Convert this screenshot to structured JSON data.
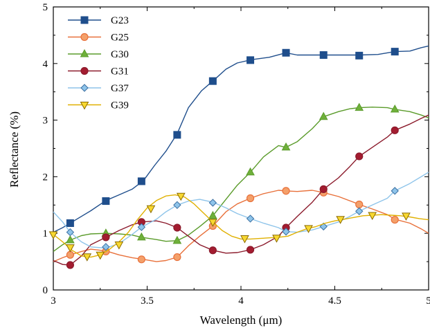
{
  "chart_data": {
    "type": "line",
    "xlabel": "Wavelength (μm)",
    "ylabel": "Reflectance (%)",
    "xlim": [
      3,
      5
    ],
    "ylim": [
      0,
      5
    ],
    "x_ticks": [
      "3",
      "3.5",
      "4",
      "4.5",
      "5"
    ],
    "y_ticks": [
      "0",
      "1",
      "2",
      "3",
      "4",
      "5"
    ],
    "grid": false,
    "legend_position": "top-left",
    "series": [
      {
        "name": "G23",
        "color": "#1f4e8c",
        "marker": "square",
        "marker_fill": "#1f4e8c",
        "x": [
          3.0,
          3.05,
          3.1,
          3.2,
          3.28,
          3.35,
          3.42,
          3.48,
          3.54,
          3.6,
          3.66,
          3.72,
          3.79,
          3.86,
          3.92,
          3.98,
          4.06,
          4.15,
          4.24,
          4.3,
          4.44,
          4.55,
          4.63,
          4.73,
          4.82,
          4.9,
          4.96,
          5.0
        ],
        "y": [
          1.02,
          1.1,
          1.2,
          1.4,
          1.58,
          1.68,
          1.78,
          1.93,
          2.2,
          2.45,
          2.76,
          3.22,
          3.52,
          3.72,
          3.9,
          4.01,
          4.07,
          4.11,
          4.19,
          4.15,
          4.15,
          4.15,
          4.15,
          4.16,
          4.21,
          4.22,
          4.28,
          4.31
        ],
        "markers_x": [
          3.09,
          3.28,
          3.47,
          3.66,
          3.85,
          4.05,
          4.24,
          4.44,
          4.63,
          4.82
        ],
        "markers_y": [
          1.18,
          1.57,
          1.92,
          2.74,
          3.69,
          4.06,
          4.19,
          4.15,
          4.14,
          4.21
        ]
      },
      {
        "name": "G25",
        "color": "#e8703a",
        "marker": "circle",
        "marker_fill": "#f4a06a",
        "x": [
          3.0,
          3.05,
          3.09,
          3.15,
          3.2,
          3.28,
          3.35,
          3.42,
          3.48,
          3.55,
          3.6,
          3.66,
          3.72,
          3.78,
          3.85,
          3.92,
          3.98,
          4.05,
          4.12,
          4.2,
          4.24,
          4.3,
          4.38,
          4.44,
          4.52,
          4.6,
          4.63,
          4.7,
          4.78,
          4.82,
          4.9,
          4.96,
          5.0
        ],
        "y": [
          0.5,
          0.57,
          0.62,
          0.68,
          0.72,
          0.69,
          0.62,
          0.57,
          0.54,
          0.5,
          0.52,
          0.58,
          0.78,
          0.95,
          1.13,
          1.38,
          1.52,
          1.62,
          1.7,
          1.76,
          1.75,
          1.74,
          1.76,
          1.72,
          1.65,
          1.55,
          1.51,
          1.43,
          1.33,
          1.25,
          1.18,
          1.08,
          1.0
        ],
        "markers_x": [
          3.09,
          3.28,
          3.47,
          3.66,
          3.85,
          4.05,
          4.24,
          4.44,
          4.63,
          4.82
        ],
        "markers_y": [
          0.62,
          0.68,
          0.54,
          0.58,
          1.13,
          1.62,
          1.75,
          1.72,
          1.51,
          1.24
        ]
      },
      {
        "name": "G30",
        "color": "#5a9b2a",
        "marker": "triangle-up",
        "marker_fill": "#6fb03a",
        "x": [
          3.0,
          3.05,
          3.09,
          3.15,
          3.2,
          3.28,
          3.35,
          3.42,
          3.47,
          3.55,
          3.6,
          3.66,
          3.72,
          3.78,
          3.85,
          3.92,
          3.98,
          4.05,
          4.12,
          4.2,
          4.24,
          4.3,
          4.38,
          4.44,
          4.52,
          4.58,
          4.63,
          4.7,
          4.78,
          4.82,
          4.9,
          4.96,
          5.0
        ],
        "y": [
          0.68,
          0.8,
          0.88,
          0.96,
          0.99,
          1.0,
          0.99,
          0.97,
          0.93,
          0.89,
          0.86,
          0.87,
          0.97,
          1.12,
          1.31,
          1.6,
          1.85,
          2.08,
          2.35,
          2.55,
          2.52,
          2.62,
          2.85,
          3.06,
          3.15,
          3.2,
          3.22,
          3.23,
          3.22,
          3.19,
          3.15,
          3.09,
          3.04
        ],
        "markers_x": [
          3.09,
          3.28,
          3.47,
          3.66,
          3.85,
          4.05,
          4.24,
          4.44,
          4.63,
          4.82
        ],
        "markers_y": [
          0.88,
          1.0,
          0.93,
          0.87,
          1.31,
          2.08,
          2.52,
          3.06,
          3.22,
          3.19
        ]
      },
      {
        "name": "G31",
        "color": "#8b1a2b",
        "marker": "circle",
        "marker_fill": "#a31c30",
        "x": [
          3.0,
          3.05,
          3.09,
          3.15,
          3.2,
          3.28,
          3.35,
          3.42,
          3.47,
          3.55,
          3.6,
          3.66,
          3.72,
          3.78,
          3.85,
          3.92,
          3.98,
          4.05,
          4.12,
          4.2,
          4.24,
          4.3,
          4.38,
          4.44,
          4.52,
          4.58,
          4.63,
          4.7,
          4.78,
          4.82,
          4.9,
          4.96,
          5.0
        ],
        "y": [
          0.52,
          0.45,
          0.44,
          0.6,
          0.8,
          0.93,
          1.05,
          1.15,
          1.2,
          1.22,
          1.18,
          1.1,
          0.95,
          0.8,
          0.7,
          0.65,
          0.66,
          0.71,
          0.8,
          0.95,
          1.1,
          1.3,
          1.55,
          1.78,
          1.98,
          2.18,
          2.36,
          2.52,
          2.7,
          2.82,
          2.93,
          3.03,
          3.09
        ],
        "markers_x": [
          3.09,
          3.28,
          3.47,
          3.66,
          3.85,
          4.05,
          4.24,
          4.44,
          4.63,
          4.82
        ],
        "markers_y": [
          0.44,
          0.93,
          1.2,
          1.1,
          0.7,
          0.71,
          1.1,
          1.78,
          2.36,
          2.82
        ]
      },
      {
        "name": "G37",
        "color": "#8ec4ea",
        "marker": "diamond",
        "marker_fill": "#8ec4ea",
        "x": [
          3.0,
          3.05,
          3.09,
          3.15,
          3.2,
          3.28,
          3.35,
          3.42,
          3.47,
          3.55,
          3.6,
          3.66,
          3.72,
          3.78,
          3.85,
          3.92,
          3.98,
          4.05,
          4.12,
          4.2,
          4.24,
          4.3,
          4.38,
          4.44,
          4.52,
          4.58,
          4.63,
          4.7,
          4.78,
          4.82,
          4.9,
          4.96,
          5.0
        ],
        "y": [
          1.38,
          1.2,
          1.02,
          0.85,
          0.76,
          0.74,
          0.82,
          0.98,
          1.11,
          1.25,
          1.38,
          1.5,
          1.57,
          1.6,
          1.55,
          1.45,
          1.35,
          1.26,
          1.18,
          1.1,
          1.03,
          1.02,
          1.06,
          1.12,
          1.2,
          1.3,
          1.39,
          1.5,
          1.62,
          1.75,
          1.88,
          2.0,
          2.08
        ],
        "markers_x": [
          3.09,
          3.28,
          3.47,
          3.66,
          3.85,
          4.05,
          4.24,
          4.44,
          4.63,
          4.82
        ],
        "markers_y": [
          1.02,
          0.76,
          1.11,
          1.5,
          1.54,
          1.26,
          1.03,
          1.12,
          1.39,
          1.75
        ]
      },
      {
        "name": "G39",
        "color": "#e0b000",
        "marker": "triangle-down",
        "marker_fill": "#f8d830",
        "x": [
          3.0,
          3.05,
          3.1,
          3.15,
          3.2,
          3.25,
          3.3,
          3.35,
          3.4,
          3.45,
          3.5,
          3.55,
          3.6,
          3.65,
          3.7,
          3.75,
          3.8,
          3.85,
          3.9,
          3.95,
          4.0,
          4.05,
          4.1,
          4.15,
          4.2,
          4.25,
          4.3,
          4.35,
          4.4,
          4.45,
          4.5,
          4.55,
          4.6,
          4.65,
          4.7,
          4.75,
          4.8,
          4.85,
          4.9,
          4.95,
          5.0
        ],
        "y": [
          0.98,
          0.85,
          0.7,
          0.6,
          0.58,
          0.62,
          0.72,
          0.85,
          1.02,
          1.25,
          1.45,
          1.58,
          1.66,
          1.68,
          1.64,
          1.52,
          1.36,
          1.2,
          1.05,
          0.95,
          0.9,
          0.9,
          0.91,
          0.92,
          0.93,
          0.95,
          1.02,
          1.08,
          1.12,
          1.18,
          1.22,
          1.25,
          1.28,
          1.31,
          1.32,
          1.33,
          1.32,
          1.31,
          1.29,
          1.26,
          1.24
        ],
        "markers_x": [
          3.0,
          3.09,
          3.18,
          3.25,
          3.35,
          3.52,
          3.68,
          3.85,
          4.02,
          4.19,
          4.36,
          4.53,
          4.7,
          4.88
        ],
        "markers_y": [
          0.98,
          0.75,
          0.59,
          0.62,
          0.8,
          1.44,
          1.66,
          1.2,
          0.91,
          0.92,
          1.09,
          1.25,
          1.32,
          1.31
        ]
      }
    ]
  }
}
